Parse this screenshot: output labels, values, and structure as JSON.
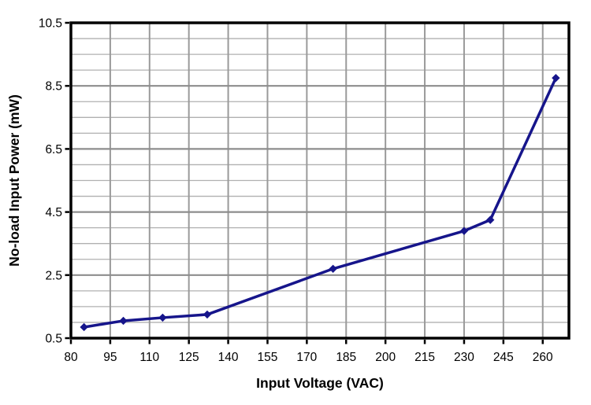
{
  "chart_data": {
    "type": "line",
    "title": "",
    "xlabel": "Input Voltage (VAC)",
    "ylabel": "No-load Input Power (mW)",
    "x": [
      85,
      100,
      115,
      132,
      180,
      230,
      240,
      265
    ],
    "series": [
      {
        "name": "No-load input power",
        "values": [
          0.85,
          1.05,
          1.15,
          1.25,
          2.7,
          3.9,
          4.25,
          8.75
        ],
        "color": "#16158b",
        "marker": "diamond"
      }
    ],
    "xlim": [
      80,
      270
    ],
    "ylim": [
      0.5,
      10.5
    ],
    "x_ticks": [
      80,
      95,
      110,
      125,
      140,
      155,
      170,
      185,
      200,
      215,
      230,
      245,
      260
    ],
    "y_ticks": [
      0.5,
      2.5,
      4.5,
      6.5,
      8.5,
      10.5
    ],
    "y_minor_step": 0.5,
    "grid": "both",
    "legend": "none",
    "colors": {
      "line": "#16158b",
      "grid_minor": "#b0b0b0",
      "grid_major": "#8d8d8d",
      "grid_vertical": "#9a9a9a",
      "axis_border": "#000000",
      "tick": "#000000",
      "text": "#000000",
      "plot_background": "#ffffff"
    }
  }
}
